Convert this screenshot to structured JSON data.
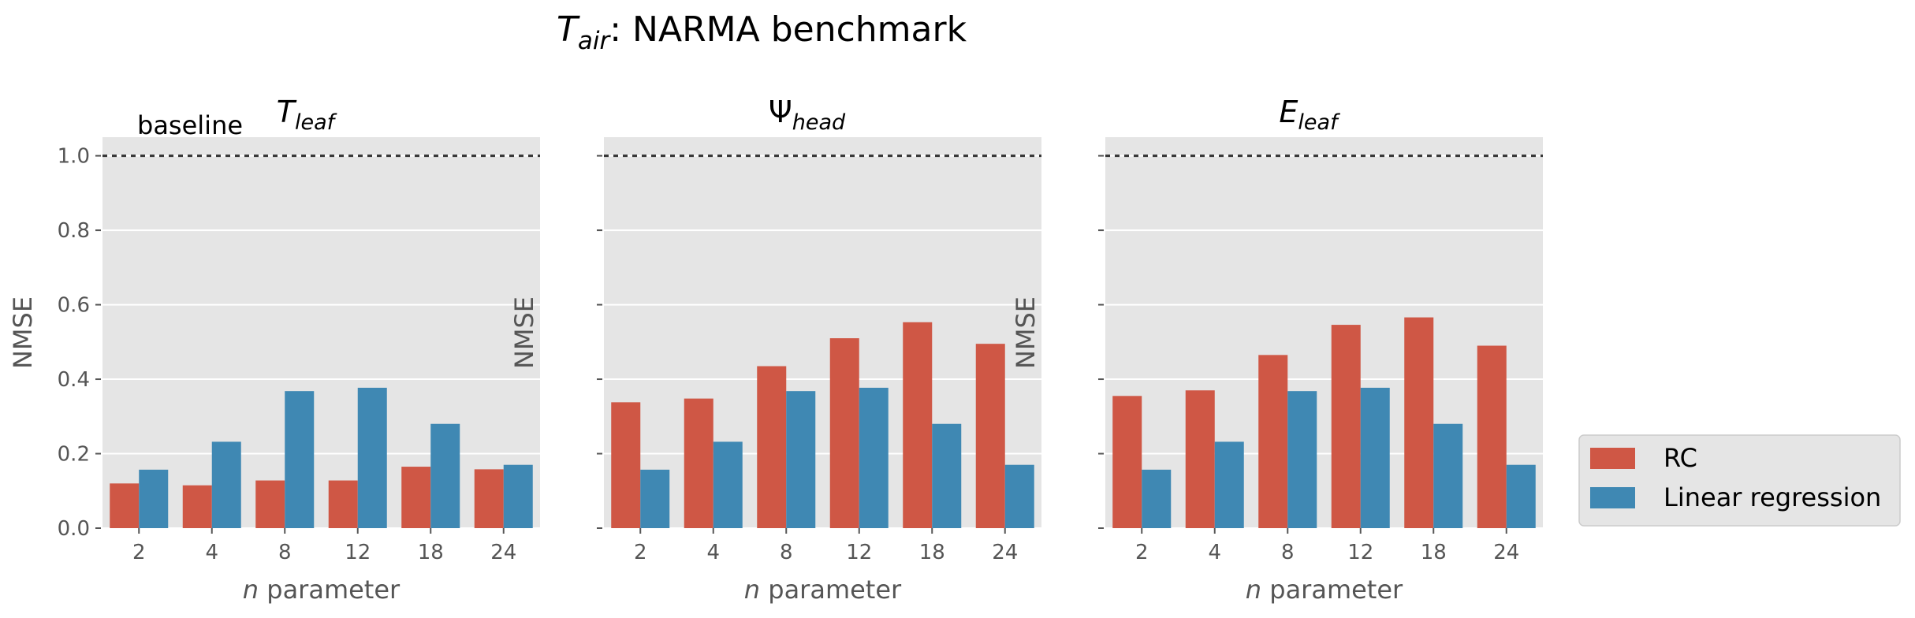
{
  "figure": {
    "title_main": "T",
    "title_sub": "air",
    "title_rest": ": NARMA benchmark"
  },
  "chart_data": [
    {
      "type": "bar",
      "title_main": "T",
      "title_sub": "leaf",
      "annotation": "baseline",
      "xlabel_italic": "n",
      "xlabel_rest": " parameter",
      "ylabel": "NMSE",
      "categories": [
        "2",
        "4",
        "8",
        "12",
        "18",
        "24"
      ],
      "ylim": [
        0,
        1.05
      ],
      "yticks": [
        "0.0",
        "0.2",
        "0.4",
        "0.6",
        "0.8",
        "1.0"
      ],
      "baseline_value": 1.0,
      "series": [
        {
          "name": "RC",
          "values": [
            0.12,
            0.115,
            0.128,
            0.128,
            0.165,
            0.158
          ]
        },
        {
          "name": "Linear regression",
          "values": [
            0.157,
            0.232,
            0.368,
            0.377,
            0.28,
            0.17
          ]
        }
      ]
    },
    {
      "type": "bar",
      "title_main": "Ψ",
      "title_sub": "head",
      "xlabel_italic": "n",
      "xlabel_rest": " parameter",
      "ylabel": "NMSE",
      "categories": [
        "2",
        "4",
        "8",
        "12",
        "18",
        "24"
      ],
      "ylim": [
        0,
        1.05
      ],
      "baseline_value": 1.0,
      "series": [
        {
          "name": "RC",
          "values": [
            0.338,
            0.348,
            0.435,
            0.51,
            0.553,
            0.495
          ]
        },
        {
          "name": "Linear regression",
          "values": [
            0.157,
            0.232,
            0.368,
            0.377,
            0.28,
            0.17
          ]
        }
      ]
    },
    {
      "type": "bar",
      "title_main": "E",
      "title_sub": "leaf",
      "xlabel_italic": "n",
      "xlabel_rest": " parameter",
      "ylabel": "NMSE",
      "categories": [
        "2",
        "4",
        "8",
        "12",
        "18",
        "24"
      ],
      "ylim": [
        0,
        1.05
      ],
      "baseline_value": 1.0,
      "series": [
        {
          "name": "RC",
          "values": [
            0.355,
            0.37,
            0.465,
            0.546,
            0.566,
            0.49
          ]
        },
        {
          "name": "Linear regression",
          "values": [
            0.157,
            0.232,
            0.368,
            0.377,
            0.28,
            0.17
          ]
        }
      ]
    }
  ],
  "legend": {
    "placement": "lower-right outside",
    "items": [
      "RC",
      "Linear regression"
    ]
  },
  "colors": {
    "rc": "#cf5745",
    "linear": "#3f88b3",
    "panel_bg": "#e5e5e5",
    "grid": "#ffffff",
    "baseline": "#333333",
    "tick_text": "#555555",
    "legend_bg": "#e5e5e5"
  }
}
